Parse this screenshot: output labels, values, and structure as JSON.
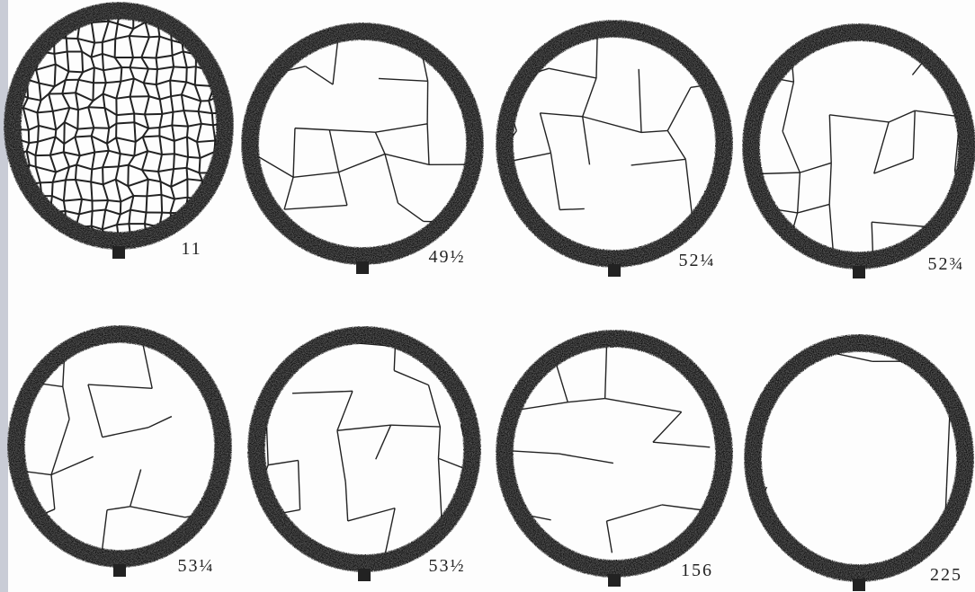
{
  "panels": [
    {
      "label": "11"
    },
    {
      "label": "49½"
    },
    {
      "label": "52¼"
    },
    {
      "label": "52¾"
    },
    {
      "label": "53¼"
    },
    {
      "label": "53½"
    },
    {
      "label": "156"
    },
    {
      "label": "225"
    }
  ]
}
